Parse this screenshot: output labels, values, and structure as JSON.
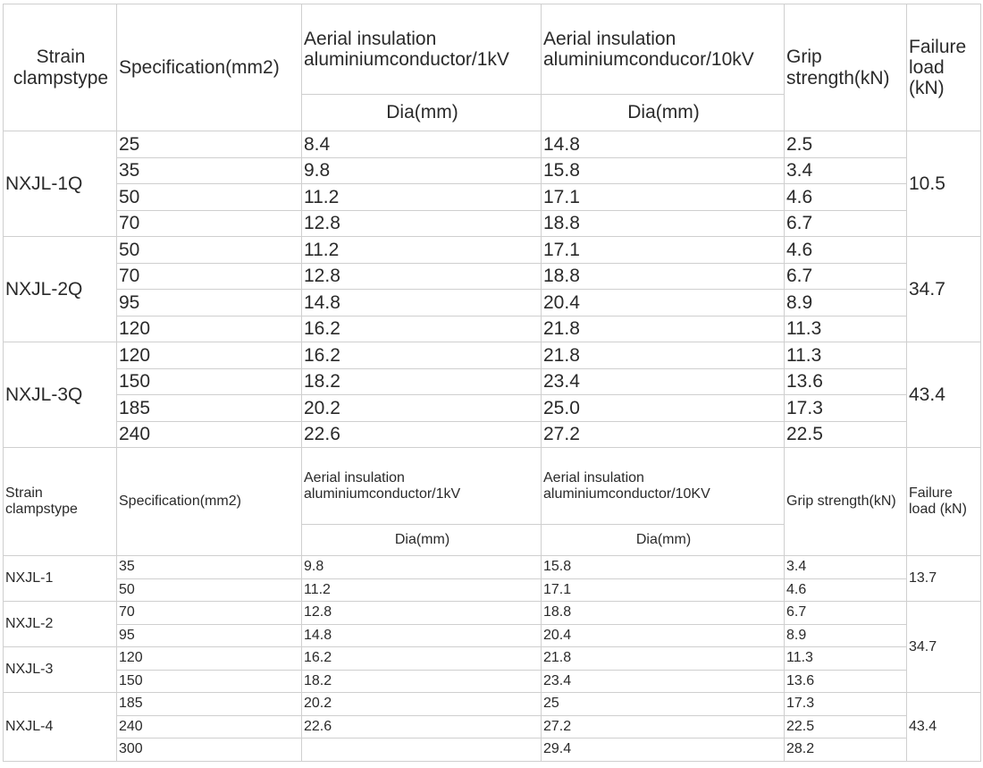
{
  "table1": {
    "headers": {
      "type": "Strain clampstype",
      "spec": "Specification(mm2)",
      "kv1": "Aerial insulation aluminiumconductor/1kV",
      "kv10": "Aerial insulation aluminiumconducor/10kV",
      "grip": "Grip strength(kN)",
      "fail": "Failure load (kN)",
      "dia1": "Dia(mm)",
      "dia10": "Dia(mm)"
    },
    "groups": [
      {
        "type": "NXJL-1Q",
        "fail": "10.5",
        "rows": [
          {
            "spec": "25",
            "d1": "8.4",
            "d10": "14.8",
            "grip": "2.5"
          },
          {
            "spec": "35",
            "d1": "9.8",
            "d10": "15.8",
            "grip": "3.4"
          },
          {
            "spec": "50",
            "d1": "11.2",
            "d10": "17.1",
            "grip": "4.6"
          },
          {
            "spec": "70",
            "d1": "12.8",
            "d10": "18.8",
            "grip": "6.7"
          }
        ]
      },
      {
        "type": "NXJL-2Q",
        "fail": "34.7",
        "rows": [
          {
            "spec": "50",
            "d1": "11.2",
            "d10": "17.1",
            "grip": "4.6"
          },
          {
            "spec": "70",
            "d1": "12.8",
            "d10": "18.8",
            "grip": "6.7"
          },
          {
            "spec": "95",
            "d1": "14.8",
            "d10": "20.4",
            "grip": "8.9"
          },
          {
            "spec": "120",
            "d1": "16.2",
            "d10": "21.8",
            "grip": "11.3"
          }
        ]
      },
      {
        "type": "NXJL-3Q",
        "fail": "43.4",
        "rows": [
          {
            "spec": "120",
            "d1": "16.2",
            "d10": "21.8",
            "grip": "11.3"
          },
          {
            "spec": "150",
            "d1": "18.2",
            "d10": "23.4",
            "grip": "13.6"
          },
          {
            "spec": "185",
            "d1": "20.2",
            "d10": "25.0",
            "grip": "17.3"
          },
          {
            "spec": "240",
            "d1": "22.6",
            "d10": "27.2",
            "grip": "22.5"
          }
        ]
      }
    ]
  },
  "table2": {
    "headers": {
      "type": "Strain clampstype",
      "spec": "Specification(mm2)",
      "kv1": "Aerial insulation aluminiumconductor/1kV",
      "kv10": "Aerial insulation aluminiumconductor/10KV",
      "grip": "Grip strength(kN)",
      "fail": "Failure load (kN)",
      "dia1": "Dia(mm)",
      "dia10": "Dia(mm)"
    },
    "rows": [
      {
        "type": "NXJL-1",
        "spec": "35",
        "d1": "9.8",
        "d10": "15.8",
        "grip": "3.4",
        "fail": "13.7"
      },
      {
        "type": "",
        "spec": "50",
        "d1": "11.2",
        "d10": "17.1",
        "grip": "4.6",
        "fail": ""
      },
      {
        "type": "NXJL-2",
        "spec": "70",
        "d1": "12.8",
        "d10": "18.8",
        "grip": "6.7",
        "fail": "34.7"
      },
      {
        "type": "",
        "spec": "95",
        "d1": "14.8",
        "d10": "20.4",
        "grip": "8.9",
        "fail": ""
      },
      {
        "type": "NXJL-3",
        "spec": "120",
        "d1": "16.2",
        "d10": "21.8",
        "grip": "11.3",
        "fail": ""
      },
      {
        "type": "",
        "spec": "150",
        "d1": "18.2",
        "d10": "23.4",
        "grip": "13.6",
        "fail": ""
      },
      {
        "type": "NXJL-4",
        "spec": "185",
        "d1": "20.2",
        "d10": "25",
        "grip": "17.3",
        "fail": "43.4"
      },
      {
        "type": "",
        "spec": "240",
        "d1": "22.6",
        "d10": "27.2",
        "grip": "22.5",
        "fail": ""
      },
      {
        "type": "",
        "spec": "300",
        "d1": "",
        "d10": "29.4",
        "grip": "28.2",
        "fail": ""
      }
    ]
  }
}
